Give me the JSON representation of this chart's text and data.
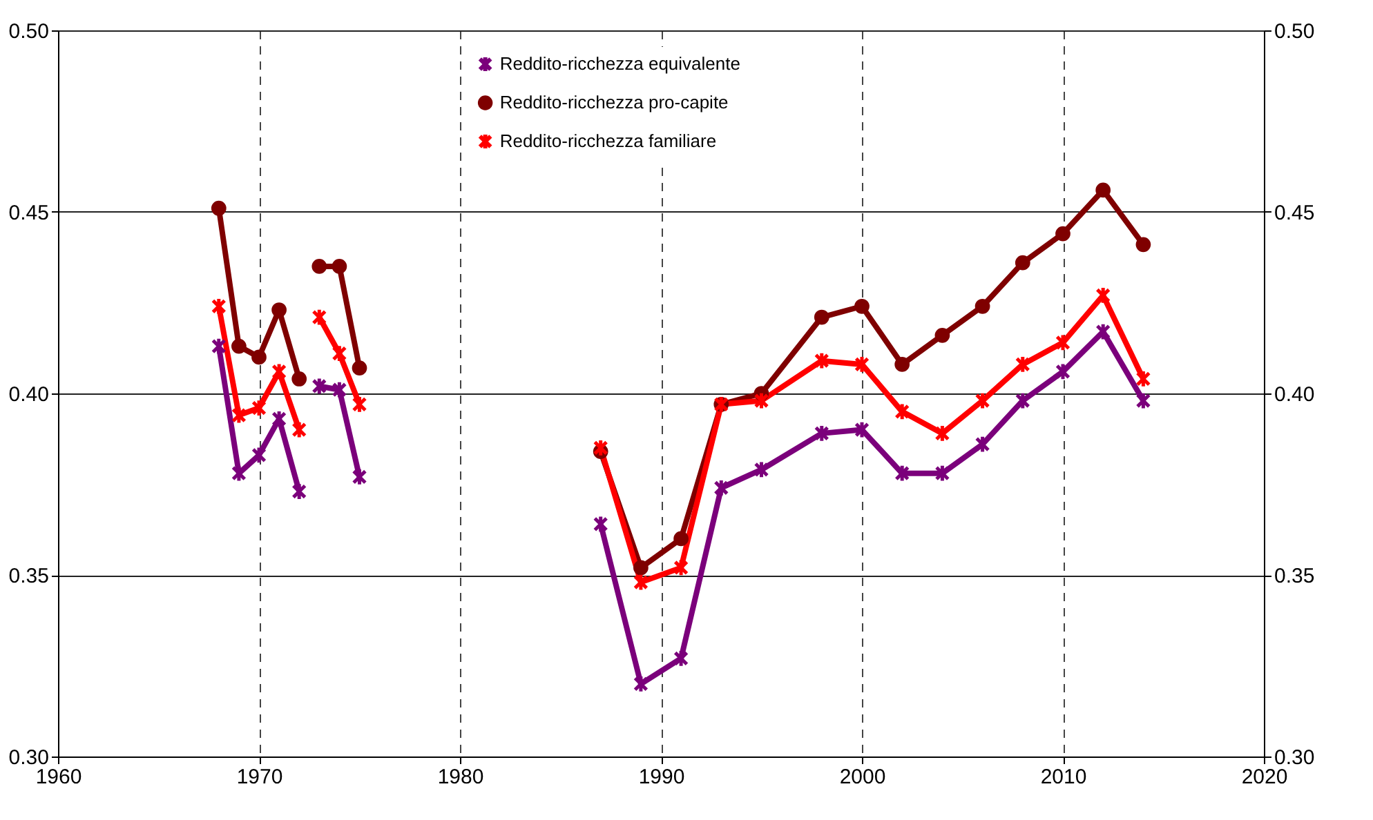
{
  "chart_data": {
    "type": "line",
    "x": [
      1968,
      1969,
      1970,
      1971,
      1972,
      1972.5,
      1973,
      1974,
      1975,
      1980,
      1987,
      1989,
      1991,
      1993,
      1995,
      1998,
      2000,
      2002,
      2004,
      2006,
      2008,
      2010,
      2012,
      2014
    ],
    "series": [
      {
        "name": "Reddito-ricchezza equivalente",
        "color": "#7b007b",
        "marker": "cross",
        "values": [
          0.413,
          0.378,
          0.383,
          0.393,
          0.373,
          null,
          0.402,
          0.401,
          0.377,
          null,
          0.364,
          0.32,
          0.327,
          0.374,
          0.379,
          0.389,
          0.39,
          0.378,
          0.378,
          0.386,
          0.398,
          0.406,
          0.417,
          0.398
        ]
      },
      {
        "name": "Reddito-ricchezza pro-capite",
        "color": "#7f0000",
        "marker": "circle",
        "values": [
          0.451,
          0.413,
          0.41,
          0.423,
          0.404,
          null,
          0.435,
          0.435,
          0.407,
          null,
          0.384,
          0.352,
          0.36,
          0.397,
          0.4,
          0.421,
          0.424,
          0.408,
          0.416,
          0.424,
          0.436,
          0.444,
          0.456,
          0.441
        ]
      },
      {
        "name": "Reddito-ricchezza familiare",
        "color": "#ff0000",
        "marker": "cross",
        "values": [
          0.424,
          0.394,
          0.396,
          0.406,
          0.39,
          null,
          0.421,
          0.411,
          0.397,
          null,
          0.385,
          0.348,
          0.352,
          0.397,
          0.398,
          0.409,
          0.408,
          0.395,
          0.389,
          0.398,
          0.408,
          0.414,
          0.427,
          0.404
        ]
      }
    ],
    "xlim": [
      1960,
      2020
    ],
    "xticks": [
      1960,
      1970,
      1980,
      1990,
      2000,
      2010,
      2020
    ],
    "ylim": [
      0.3,
      0.5
    ],
    "yticks": [
      {
        "value": 0.3,
        "label": "0.30"
      },
      0.35,
      {
        "value": 0.4,
        "label": "0.40"
      },
      0.45,
      {
        "value": 0.5,
        "label": "0.50"
      }
    ],
    "y2lim": [
      0.3,
      0.5
    ],
    "y2ticks": [
      {
        "value": 0.3,
        "label": "0.30"
      },
      0.35,
      {
        "value": 0.4,
        "label": "0.40"
      },
      0.45,
      {
        "value": 0.5,
        "label": "0.50"
      }
    ],
    "grid": true,
    "legend": "top",
    "line_style": "solid"
  }
}
